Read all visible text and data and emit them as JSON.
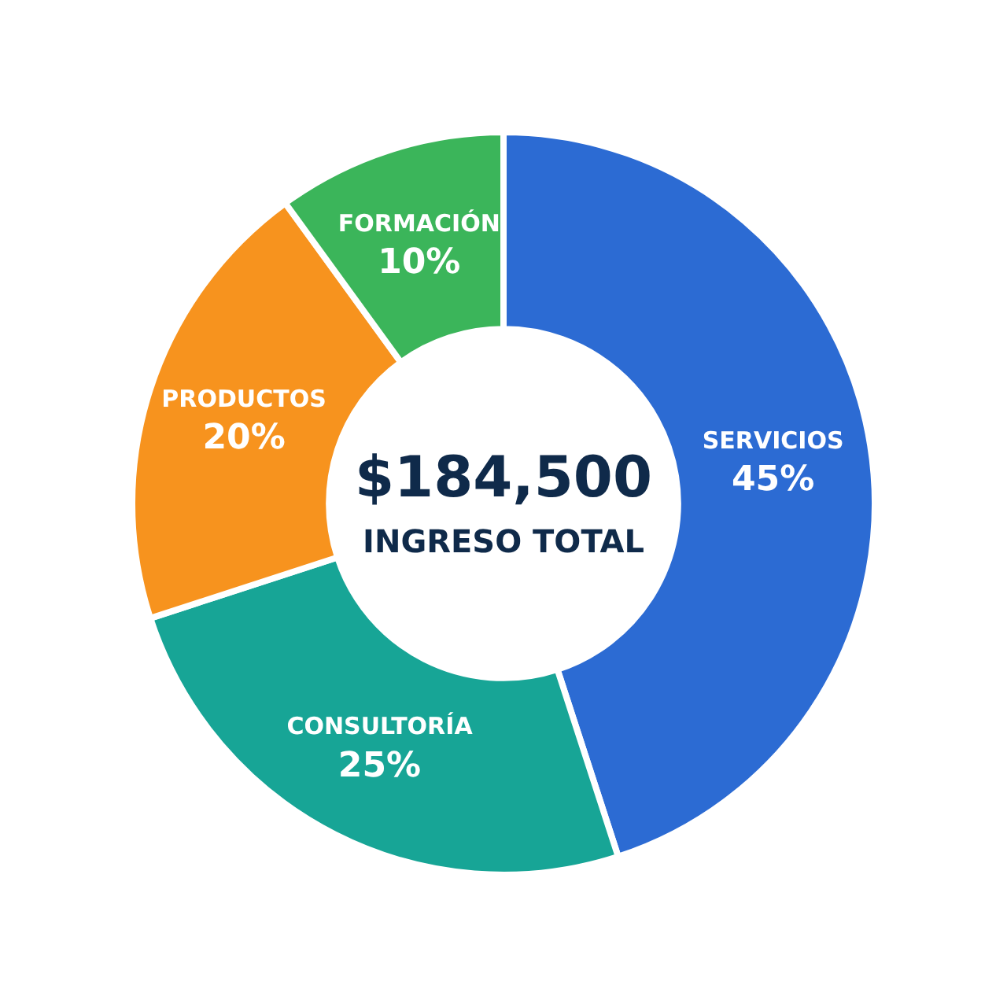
{
  "chart_data": {
    "type": "donut",
    "categories": [
      "SERVICIOS",
      "CONSULTORÍA",
      "PRODUCTOS",
      "FORMACIÓN"
    ],
    "values": [
      45,
      25,
      20,
      10
    ],
    "colors": [
      "#2c6bd3",
      "#17a596",
      "#f7931e",
      "#3bb55a"
    ],
    "value_labels": [
      "45%",
      "25%",
      "20%",
      "10%"
    ],
    "annotations": [
      "$184,500",
      "INGRESO TOTAL"
    ],
    "legend": false
  }
}
